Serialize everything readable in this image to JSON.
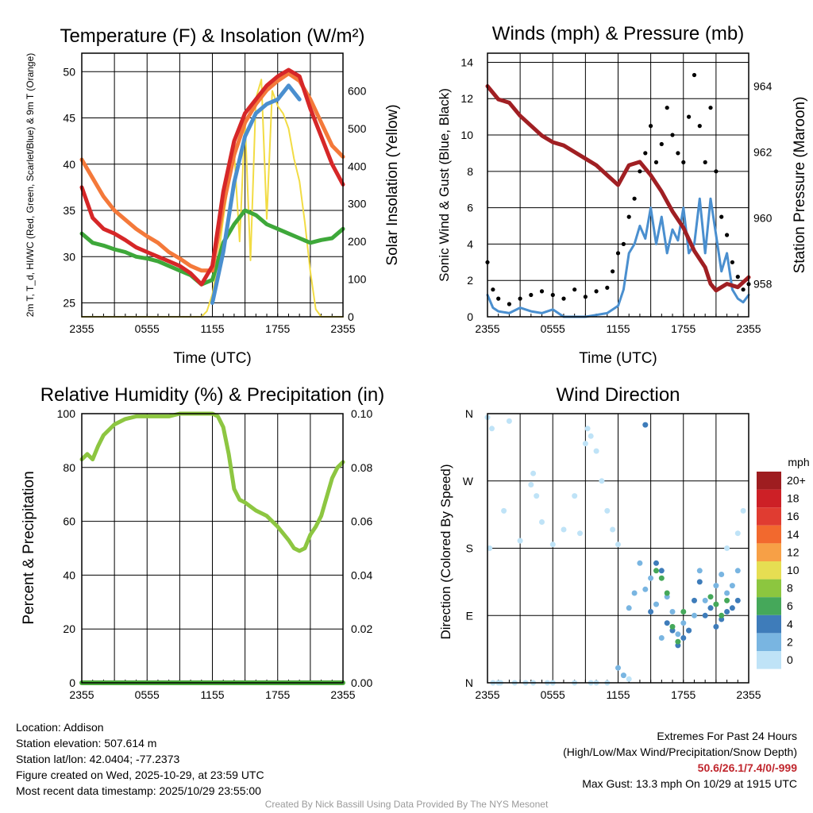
{
  "chart_data": [
    {
      "type": "line",
      "title": "Temperature (F) & Insolation (W/m²)",
      "xlabel": "Time (UTC)",
      "ylabel": "2m T, T_d, HI/WC (Red, Green, Scarlet/Blue) & 9m T (Orange)",
      "y2label": "Solar Insolation (Yellow)",
      "x_ticks": [
        "2355",
        "0555",
        "1155",
        "1755",
        "2355"
      ],
      "x_range_hours": [
        0,
        24
      ],
      "ylim": [
        23.5,
        52
      ],
      "y_ticks": [
        25,
        30,
        35,
        40,
        45,
        50
      ],
      "y2lim": [
        0,
        700
      ],
      "y2_ticks": [
        0,
        100,
        200,
        300,
        400,
        500,
        600
      ],
      "series": [
        {
          "name": "2m T",
          "color": "#d62728",
          "x": [
            0,
            1,
            2,
            3,
            4,
            5,
            6,
            7,
            8,
            9,
            10,
            11,
            12,
            13,
            14,
            15,
            16,
            17,
            18,
            19,
            20,
            21,
            22,
            23,
            24
          ],
          "y": [
            37.5,
            34.2,
            33.0,
            32.5,
            31.8,
            31.0,
            30.5,
            30.0,
            29.5,
            29.0,
            28.2,
            27.0,
            29.0,
            37.0,
            42.5,
            45.5,
            47.0,
            48.5,
            49.5,
            50.2,
            49.5,
            46.0,
            43.0,
            40.0,
            37.8
          ]
        },
        {
          "name": "9m T",
          "color": "#f4793a",
          "x": [
            0,
            1,
            2,
            3,
            4,
            5,
            6,
            7,
            8,
            9,
            10,
            11,
            12,
            13,
            14,
            15,
            16,
            17,
            18,
            19,
            20,
            21,
            22,
            23,
            24
          ],
          "y": [
            40.5,
            38.5,
            36.5,
            35.0,
            34.0,
            33.0,
            32.2,
            31.5,
            30.5,
            29.8,
            29.0,
            28.5,
            28.5,
            35.5,
            41.0,
            44.5,
            46.5,
            48.0,
            49.0,
            49.8,
            49.0,
            47.0,
            44.5,
            42.0,
            40.8
          ]
        },
        {
          "name": "HI/WC",
          "color": "#4a8fcf",
          "x": [
            12,
            13,
            14,
            15,
            16,
            17,
            18,
            19,
            20
          ],
          "y": [
            25.0,
            30.5,
            38.0,
            43.0,
            45.5,
            46.5,
            47.0,
            48.5,
            47.0
          ]
        },
        {
          "name": "Dew Point",
          "color": "#3ea83a",
          "x": [
            0,
            1,
            2,
            3,
            4,
            5,
            6,
            7,
            8,
            9,
            10,
            11,
            12,
            13,
            14,
            15,
            16,
            17,
            18,
            19,
            20,
            21,
            22,
            23,
            24
          ],
          "y": [
            32.5,
            31.5,
            31.2,
            30.8,
            30.5,
            30.0,
            29.8,
            29.5,
            29.0,
            28.5,
            28.0,
            27.0,
            27.5,
            31.5,
            33.5,
            35.0,
            34.5,
            33.5,
            33.0,
            32.5,
            32.0,
            31.5,
            31.8,
            32.0,
            33.0
          ]
        },
        {
          "name": "Solar Insolation",
          "color": "#f2dc44",
          "axis": "y2",
          "x": [
            0,
            11,
            11.5,
            12,
            12.5,
            13,
            13.5,
            14,
            14.5,
            15,
            15.5,
            16,
            16.5,
            17,
            17.5,
            18,
            18.5,
            19,
            19.5,
            20,
            20.5,
            21,
            21.5,
            22,
            24
          ],
          "y": [
            0,
            0,
            15,
            60,
            150,
            260,
            360,
            440,
            200,
            520,
            150,
            580,
            630,
            260,
            600,
            560,
            540,
            500,
            420,
            360,
            250,
            120,
            20,
            0,
            0
          ]
        }
      ]
    },
    {
      "type": "line",
      "title": "Winds (mph) & Pressure (mb)",
      "xlabel": "Time (UTC)",
      "ylabel": "Sonic Wind & Gust (Blue, Black)",
      "y2label": "Station Pressure (Maroon)",
      "x_ticks": [
        "2355",
        "0555",
        "1155",
        "1755",
        "2355"
      ],
      "x_range_hours": [
        0,
        24
      ],
      "ylim": [
        0,
        14.5
      ],
      "y_ticks": [
        0,
        2,
        4,
        6,
        8,
        10,
        12,
        14
      ],
      "y2lim": [
        957.0,
        965.0
      ],
      "y2_ticks": [
        958,
        960,
        962,
        964
      ],
      "series": [
        {
          "name": "Station Pressure",
          "color": "#a01f23",
          "axis": "y2",
          "x": [
            0,
            1,
            2,
            3,
            4,
            5,
            6,
            7,
            8,
            9,
            10,
            11,
            12,
            13,
            14,
            15,
            16,
            17,
            18,
            19,
            20,
            20.5,
            21,
            22,
            23,
            24
          ],
          "y": [
            964.0,
            963.6,
            963.5,
            963.1,
            962.8,
            962.5,
            962.3,
            962.2,
            962.0,
            961.8,
            961.6,
            961.3,
            961.0,
            961.6,
            961.7,
            961.3,
            960.8,
            960.2,
            959.7,
            959.0,
            958.5,
            958.0,
            957.8,
            958.0,
            957.9,
            958.2
          ]
        },
        {
          "name": "Sonic Wind",
          "color": "#4a8fcf",
          "x": [
            0,
            0.5,
            1,
            2,
            3,
            4,
            5,
            6,
            7,
            8,
            9,
            10,
            11,
            12,
            12.5,
            13,
            13.5,
            14,
            14.5,
            15,
            15.5,
            16,
            16.5,
            17,
            17.5,
            18,
            18.5,
            19,
            19.5,
            20,
            20.5,
            21,
            21.5,
            22,
            22.5,
            23,
            23.5,
            24
          ],
          "y": [
            1.2,
            0.5,
            0.3,
            0.2,
            0.5,
            0.3,
            0.2,
            0.4,
            0.0,
            0.0,
            0.0,
            0.1,
            0.2,
            0.6,
            1.5,
            3.5,
            4.0,
            5.0,
            4.3,
            6.0,
            4.0,
            5.5,
            3.5,
            4.8,
            4.2,
            6.0,
            3.5,
            4.0,
            6.5,
            3.5,
            6.5,
            4.5,
            2.5,
            3.5,
            1.5,
            1.0,
            0.8,
            1.2
          ]
        },
        {
          "name": "Gust",
          "color": "#000000",
          "x": [
            0,
            0.5,
            1,
            2,
            3,
            4,
            5,
            6,
            7,
            8,
            9,
            10,
            11,
            11.5,
            12,
            12.5,
            13,
            13.5,
            14,
            14.5,
            15,
            15.5,
            16,
            16.5,
            17,
            17.5,
            18,
            18.5,
            19,
            19.5,
            20,
            20.5,
            21,
            21.5,
            22,
            22.5,
            23,
            23.5,
            24
          ],
          "y": [
            3.0,
            1.5,
            1.0,
            0.7,
            1.0,
            1.2,
            1.4,
            1.2,
            1.0,
            1.5,
            1.1,
            1.4,
            1.6,
            2.5,
            3.5,
            4.0,
            5.5,
            6.5,
            8.0,
            9.0,
            10.5,
            8.5,
            9.5,
            11.5,
            10.0,
            9.0,
            8.5,
            11.0,
            13.3,
            10.5,
            8.5,
            11.5,
            8.0,
            5.5,
            4.5,
            3.0,
            2.2,
            1.5,
            1.8
          ]
        }
      ]
    },
    {
      "type": "line",
      "title": "Relative Humidity (%) & Precipitation (in)",
      "xlabel": "",
      "ylabel": "Percent & Precipitation",
      "x_ticks": [
        "2355",
        "0555",
        "1155",
        "1755",
        "2355"
      ],
      "x_range_hours": [
        0,
        24
      ],
      "ylim": [
        0,
        100
      ],
      "y_ticks": [
        0,
        20,
        40,
        60,
        80,
        100
      ],
      "y2lim": [
        0,
        0.1
      ],
      "y2_ticks": [
        "0.00",
        "0.02",
        "0.04",
        "0.06",
        "0.08",
        "0.10"
      ],
      "series": [
        {
          "name": "Relative Humidity",
          "color": "#8dc641",
          "x": [
            0,
            0.5,
            1,
            1.5,
            2,
            3,
            4,
            5,
            6,
            7,
            8,
            9,
            10,
            11,
            12,
            12.5,
            13,
            13.5,
            14,
            14.5,
            15,
            16,
            17,
            18,
            19,
            19.5,
            20,
            20.5,
            21,
            21.5,
            22,
            23,
            23.5,
            24
          ],
          "y": [
            83,
            85,
            83,
            88,
            92,
            96,
            98,
            99,
            99,
            99,
            99,
            100,
            100,
            100,
            100,
            99,
            95,
            85,
            72,
            68,
            67,
            64,
            62,
            58,
            53,
            50,
            49,
            50,
            55,
            58,
            62,
            76,
            80,
            82
          ]
        },
        {
          "name": "Precipitation",
          "color": "#4aa83a",
          "axis": "y2",
          "x": [
            0,
            24
          ],
          "y": [
            0,
            0
          ]
        }
      ]
    },
    {
      "type": "scatter",
      "title": "Wind Direction",
      "xlabel": "",
      "ylabel": "Direction (Colored By Speed)",
      "x_ticks": [
        "2355",
        "0555",
        "1155",
        "1755",
        "2355"
      ],
      "x_range_hours": [
        0,
        24
      ],
      "y_ticks": [
        "N",
        "E",
        "S",
        "W",
        "N"
      ],
      "ylim": [
        0,
        360
      ],
      "legend": {
        "title": "mph",
        "labels": [
          "20+",
          "18",
          "16",
          "14",
          "12",
          "10",
          "8",
          "6",
          "4",
          "2",
          "0"
        ],
        "colors": [
          "#9e1d20",
          "#cd2026",
          "#e03c31",
          "#f2692e",
          "#f7a046",
          "#e6de52",
          "#8cc63f",
          "#45a85a",
          "#3e7cba",
          "#79b5e1",
          "#bfe3f7"
        ]
      },
      "series": [
        {
          "name": "speed 0-2 (very light blue)",
          "color": "#bfe3f7",
          "x": [
            0,
            0.2,
            0.4,
            1.5,
            2,
            3,
            4,
            4.2,
            4.5,
            5,
            6,
            7,
            8,
            8.5,
            9,
            9.2,
            9.5,
            10,
            10.5,
            11,
            11.5,
            12,
            0.5,
            1,
            1.2,
            2.5,
            3.5,
            4.2,
            5.5,
            6,
            8,
            9.5,
            10,
            11,
            12.5,
            13,
            22,
            23,
            23.5
          ],
          "y": [
            355,
            180,
            340,
            230,
            350,
            190,
            265,
            280,
            250,
            215,
            185,
            205,
            250,
            200,
            320,
            340,
            330,
            310,
            270,
            230,
            205,
            185,
            0,
            0,
            0,
            0,
            0,
            0,
            0,
            0,
            0,
            0,
            0,
            0,
            10,
            5,
            180,
            200,
            230
          ]
        },
        {
          "name": "speed 2-4 (light blue)",
          "color": "#79b5e1",
          "x": [
            12,
            12.5,
            13,
            13.5,
            14,
            14.5,
            15,
            15.5,
            16,
            16.5,
            17,
            17.5,
            18,
            18.5,
            19,
            19.5,
            20,
            20.5,
            21,
            21.5,
            22,
            22.5,
            23
          ],
          "y": [
            20,
            10,
            100,
            120,
            160,
            125,
            140,
            105,
            60,
            115,
            95,
            65,
            80,
            70,
            90,
            150,
            110,
            100,
            130,
            145,
            120,
            130,
            150
          ]
        },
        {
          "name": "speed 4-6 (blue)",
          "color": "#3e7cba",
          "x": [
            14.5,
            15,
            15.5,
            16,
            16.5,
            17,
            17.5,
            18,
            18.5,
            19,
            19.5,
            20,
            20.5,
            21,
            21.5,
            22,
            22.5,
            23
          ],
          "y": [
            345,
            95,
            160,
            150,
            80,
            70,
            50,
            60,
            70,
            110,
            135,
            90,
            100,
            75,
            85,
            95,
            100,
            110
          ]
        },
        {
          "name": "speed 6-8 (green)",
          "color": "#45a85a",
          "x": [
            15.5,
            16,
            16.5,
            17,
            17.5,
            18,
            20.5,
            21,
            21.5,
            22
          ],
          "y": [
            150,
            140,
            120,
            75,
            55,
            95,
            115,
            105,
            90,
            110
          ]
        }
      ]
    }
  ],
  "footer_left": {
    "location": "Location: Addison",
    "elevation": "Station elevation: 507.614 m",
    "latlon": "Station lat/lon: 42.0404; -77.2373",
    "created": "Figure created on Wed, 2025-10-29, at 23:59 UTC",
    "recent": "Most recent data timestamp: 2025/10/29 23:55:00"
  },
  "footer_right": {
    "title": "Extremes For Past 24 Hours",
    "subtitle": "(High/Low/Max Wind/Precipitation/Snow Depth)",
    "values": "50.6/26.1/7.4/0/-999",
    "gust": "Max Gust: 13.3 mph On 10/29 at 1915 UTC"
  },
  "credit": "Created By Nick Bassill Using Data Provided By The NYS Mesonet"
}
